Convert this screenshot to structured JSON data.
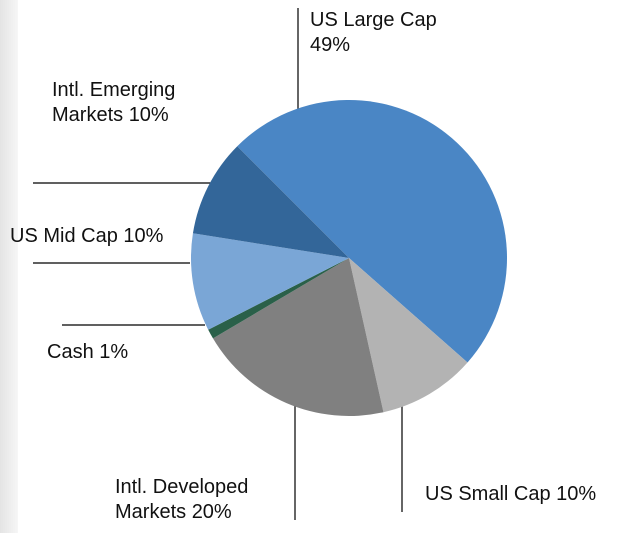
{
  "chart_data": {
    "type": "pie",
    "categories": [
      "US Large Cap",
      "US Small Cap",
      "Intl. Developed Markets",
      "Cash",
      "US Mid Cap",
      "Intl. Emerging Markets"
    ],
    "values": [
      49,
      10,
      20,
      1,
      10,
      10
    ],
    "value_labels": [
      "49%",
      "10%",
      "20%",
      "1%",
      "10%",
      "10%"
    ],
    "colors": [
      "#4a86c5",
      "#b3b3b3",
      "#808080",
      "#2a6049",
      "#7aa6d6",
      "#336699"
    ]
  }
}
